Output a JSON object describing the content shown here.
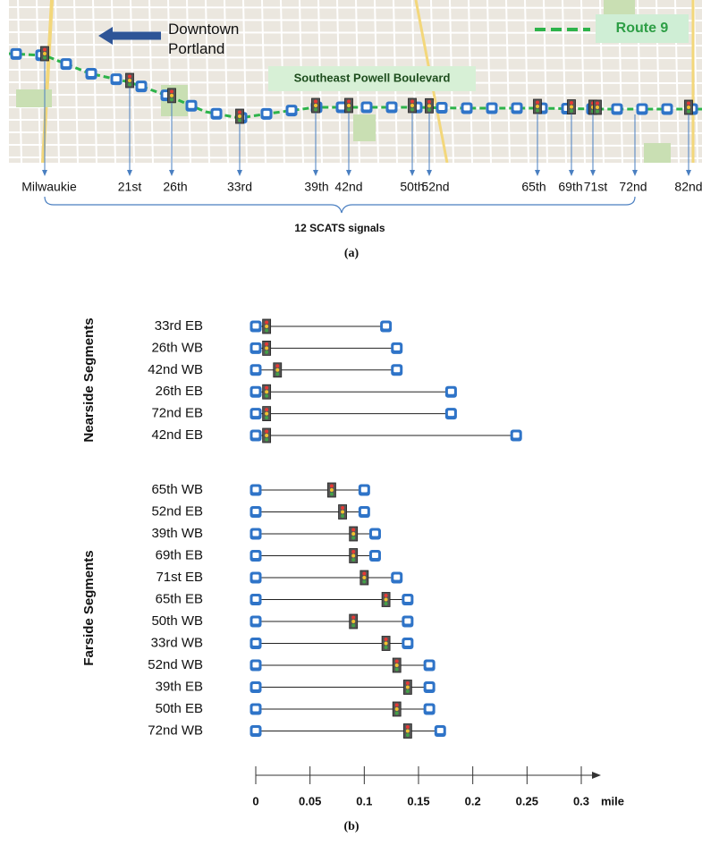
{
  "map": {
    "origin": "Downtown Portland",
    "route": "Route 9",
    "street": "Southeast Powell Boulevard",
    "signals": [
      "Milwaukie",
      "21st",
      "26th",
      "33rd",
      "39th",
      "42nd",
      "50th",
      "52nd",
      "65th",
      "69th",
      "71st",
      "72nd",
      "82nd"
    ],
    "note": "12 SCATS signals",
    "caption": "(a)"
  },
  "chart_data": {
    "type": "segment",
    "caption": "(b)",
    "xlabel": "mile",
    "xlim": [
      0,
      0.3
    ],
    "xticks": [
      0,
      0.05,
      0.1,
      0.15,
      0.2,
      0.25,
      0.3
    ],
    "groups": [
      {
        "name": "Nearside Segments",
        "categories": [
          "33rd EB",
          "26th WB",
          "42nd WB",
          "26th EB",
          "72nd EB",
          "42nd EB"
        ],
        "start": [
          0,
          0,
          0,
          0,
          0,
          0
        ],
        "signal": [
          0.01,
          0.01,
          0.02,
          0.01,
          0.01,
          0.01
        ],
        "end": [
          0.12,
          0.13,
          0.13,
          0.18,
          0.18,
          0.24
        ]
      },
      {
        "name": "Farside Segments",
        "categories": [
          "65th WB",
          "52nd EB",
          "39th WB",
          "69th EB",
          "71st EB",
          "65th EB",
          "50th WB",
          "33rd WB",
          "52nd WB",
          "39th EB",
          "50th EB",
          "72nd WB"
        ],
        "start": [
          0,
          0,
          0,
          0,
          0,
          0,
          0,
          0,
          0,
          0,
          0,
          0
        ],
        "signal": [
          0.07,
          0.08,
          0.09,
          0.09,
          0.1,
          0.12,
          0.09,
          0.12,
          0.13,
          0.14,
          0.13,
          0.14
        ],
        "end": [
          0.1,
          0.1,
          0.11,
          0.11,
          0.13,
          0.14,
          0.14,
          0.14,
          0.16,
          0.16,
          0.16,
          0.17
        ]
      }
    ]
  }
}
